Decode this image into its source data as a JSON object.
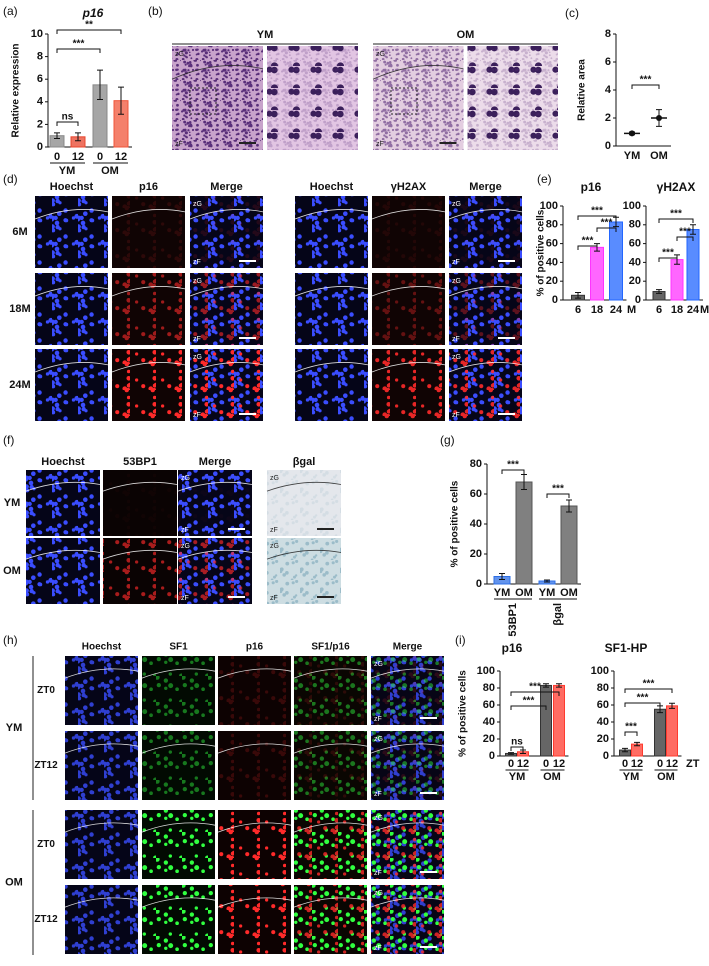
{
  "panel_labels": [
    "(a)",
    "(b)",
    "(c)",
    "(d)",
    "(e)",
    "(f)",
    "(g)",
    "(h)",
    "(i)"
  ],
  "zone_labels": [
    "zG",
    "zF"
  ],
  "b": {
    "groups": [
      "YM",
      "OM"
    ]
  },
  "d": {
    "columns_left": [
      "Hoechst",
      "p16",
      "Merge"
    ],
    "columns_right": [
      "Hoechst",
      "γH2AX",
      "Merge"
    ],
    "rows": [
      "6M",
      "18M",
      "24M"
    ]
  },
  "f": {
    "columns": [
      "Hoechst",
      "53BP1",
      "Merge",
      "βgal"
    ],
    "rows": [
      "YM",
      "OM"
    ]
  },
  "h": {
    "columns": [
      "Hoechst",
      "SF1",
      "p16",
      "SF1/p16",
      "Merge"
    ],
    "groups": [
      "YM",
      "OM"
    ],
    "rows": [
      "ZT0",
      "ZT12"
    ]
  },
  "chart_data": [
    {
      "type": "bar",
      "title": "p16",
      "y_label": "Relative expression",
      "categories": [
        "0",
        "12",
        "0",
        "12"
      ],
      "group_labels": [
        "YM",
        "OM"
      ],
      "values": [
        1.0,
        0.9,
        5.5,
        4.1
      ],
      "errors": [
        0.25,
        0.35,
        1.3,
        1.2
      ],
      "colors": [
        "#888888",
        "#e8442c",
        "#888888",
        "#f0553a"
      ],
      "annotations": [
        "ns",
        "***",
        "**"
      ],
      "ylim": [
        0,
        10
      ],
      "yticks": [
        0,
        2,
        4,
        6,
        8,
        10
      ]
    },
    {
      "type": "dot",
      "y_label": "Relative area",
      "categories": [
        "YM",
        "OM"
      ],
      "values": [
        0.9,
        2.0
      ],
      "errors": [
        0.1,
        0.6
      ],
      "colors": [
        "#111111",
        "#111111"
      ],
      "annotations": [
        "***"
      ],
      "ylim": [
        0,
        8
      ],
      "yticks": [
        0,
        2,
        4,
        6,
        8
      ]
    },
    {
      "type": "bar",
      "title": "p16",
      "y_label": "% of positive cells",
      "categories": [
        "6",
        "18",
        "24"
      ],
      "x_unit": "M",
      "values": [
        5,
        56,
        83
      ],
      "errors": [
        3,
        4,
        5
      ],
      "colors": [
        "#333333",
        "#ff33ff",
        "#2266ff"
      ],
      "annotations": [
        "***",
        "***",
        "***"
      ],
      "ylim": [
        0,
        100
      ],
      "yticks": [
        0,
        20,
        40,
        60,
        80,
        100
      ]
    },
    {
      "type": "bar",
      "title": "γH2AX",
      "categories": [
        "6",
        "18",
        "24"
      ],
      "x_unit": "M",
      "values": [
        9,
        43,
        75
      ],
      "errors": [
        2,
        5,
        5
      ],
      "colors": [
        "#333333",
        "#ff33ff",
        "#2266ff"
      ],
      "annotations": [
        "***",
        "***",
        "***"
      ],
      "ylim": [
        0,
        100
      ],
      "yticks": [
        0,
        20,
        40,
        60,
        80,
        100
      ]
    },
    {
      "type": "bar",
      "y_label": "% of positive cells",
      "categories": [
        "YM",
        "OM",
        "YM",
        "OM"
      ],
      "group_labels": [
        "53BP1",
        "βgal"
      ],
      "values": [
        5,
        68,
        2,
        52
      ],
      "errors": [
        2,
        5,
        0.7,
        4
      ],
      "colors": [
        "#2e6fe6",
        "#555555",
        "#2e6fe6",
        "#555555"
      ],
      "annotations": [
        "***",
        "***"
      ],
      "ylim": [
        0,
        80
      ],
      "yticks": [
        0,
        20,
        40,
        60,
        80
      ]
    },
    {
      "type": "bar",
      "title": "p16",
      "y_label": "% of positive cells",
      "categories": [
        "0",
        "12",
        "0",
        "12"
      ],
      "group_labels": [
        "YM",
        "OM"
      ],
      "values": [
        3,
        5,
        83,
        83
      ],
      "errors": [
        1,
        2,
        2,
        2
      ],
      "colors": [
        "#333333",
        "#ff3b2f",
        "#333333",
        "#ff3b2f"
      ],
      "annotations": [
        "ns",
        "***",
        "***"
      ],
      "ylim": [
        0,
        100
      ],
      "yticks": [
        0,
        20,
        40,
        60,
        80,
        100
      ]
    },
    {
      "type": "bar",
      "title": "SF1-HP",
      "categories": [
        "0",
        "12",
        "0",
        "12"
      ],
      "group_labels": [
        "YM",
        "OM"
      ],
      "x_unit": "ZT",
      "values": [
        7,
        14,
        55,
        59
      ],
      "errors": [
        2,
        2,
        4,
        3
      ],
      "colors": [
        "#333333",
        "#ff3b2f",
        "#333333",
        "#ff3b2f"
      ],
      "annotations": [
        "***",
        "***",
        "***"
      ],
      "ylim": [
        0,
        100
      ],
      "yticks": [
        0,
        20,
        40,
        60,
        80,
        100
      ]
    }
  ]
}
